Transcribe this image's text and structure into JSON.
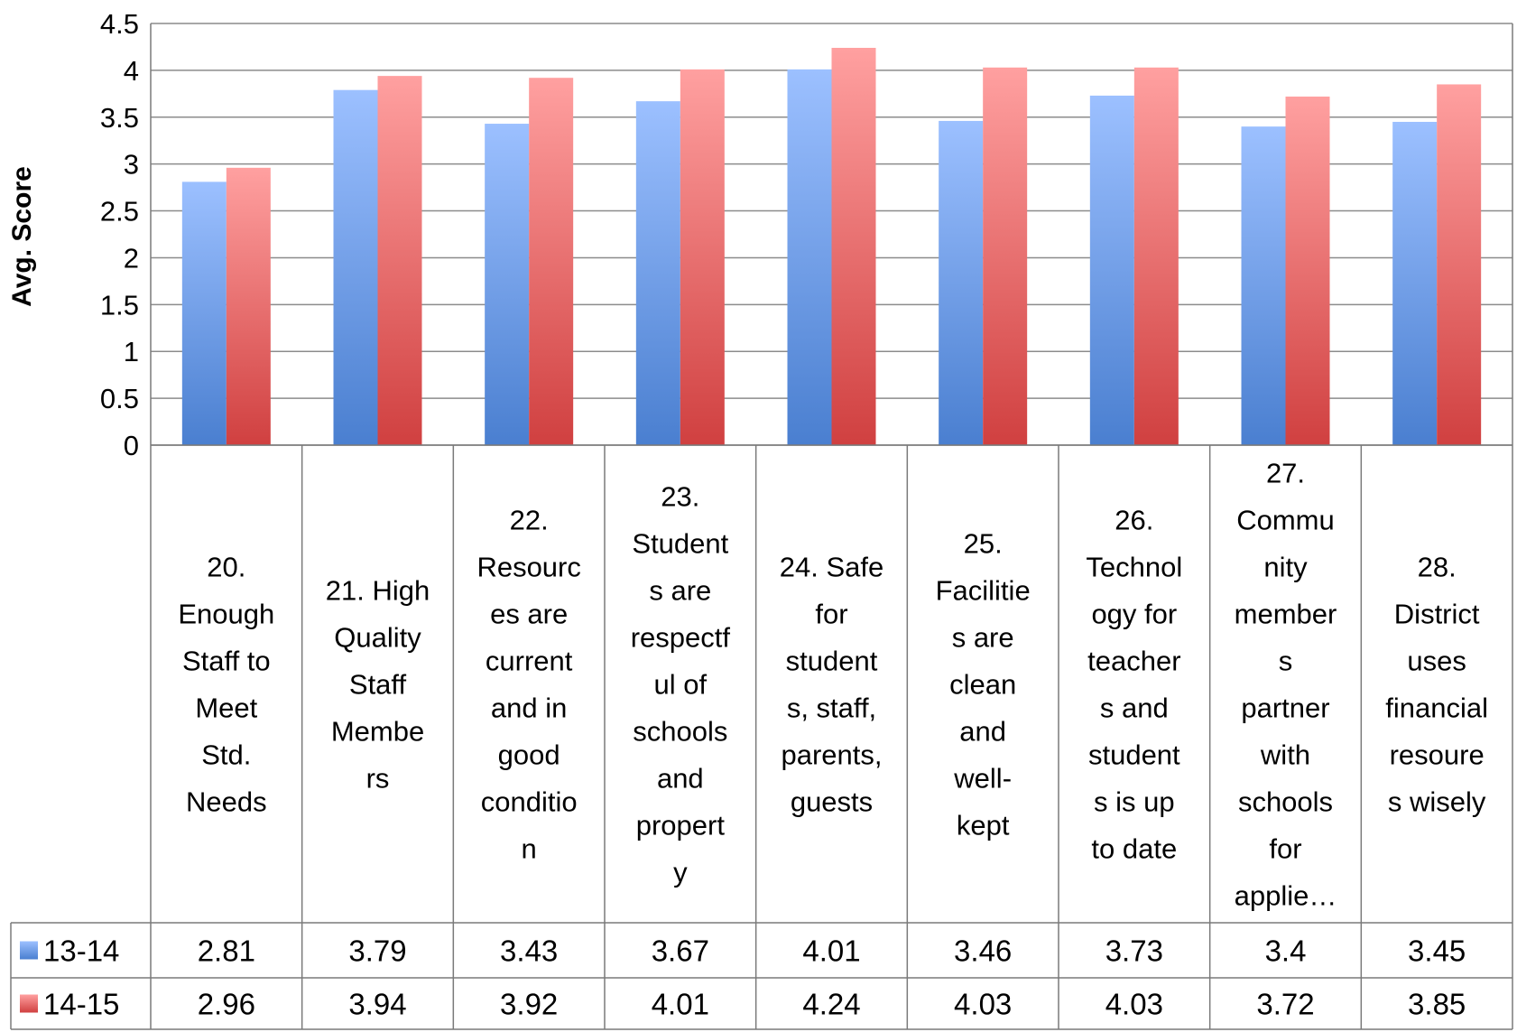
{
  "chart_data": {
    "type": "bar",
    "ylabel": "Avg. Score",
    "ylim": [
      0,
      4.5
    ],
    "yticks": [
      0,
      0.5,
      1,
      1.5,
      2,
      2.5,
      3,
      3.5,
      4,
      4.5
    ],
    "ytick_labels": [
      "0",
      "0.5",
      "1",
      "1.5",
      "2",
      "2.5",
      "3",
      "3.5",
      "4",
      "4.5"
    ],
    "grid": true,
    "legend": "data-table",
    "categories": [
      "20. Enough Staff to Meet Std. Needs",
      "21. High Quality Staff Members",
      "22. Resources are current and in good condition",
      "23. Students are respectful of schools and property",
      "24. Safe for students, staff, parents, guests",
      "25. Facilities are clean and well-kept",
      "26. Technology for teachers and students is up to date",
      "27. Community members partner with schools for applie…",
      "28. District uses financial resoures wisely"
    ],
    "category_lines": [
      [
        "20.",
        "Enough",
        "Staff to",
        "Meet",
        "Std.",
        "Needs"
      ],
      [
        "21. High",
        "Quality",
        "Staff",
        "Membe",
        "rs"
      ],
      [
        "22.",
        "Resourc",
        "es are",
        "current",
        "and in",
        "good",
        "conditio",
        "n"
      ],
      [
        "23.",
        "Student",
        "s are",
        "respectf",
        "ul of",
        "schools",
        "and",
        "propert",
        "y"
      ],
      [
        "24. Safe",
        "for",
        "student",
        "s, staff,",
        "parents,",
        "guests"
      ],
      [
        "25.",
        "Facilitie",
        "s are",
        "clean",
        "and",
        "well-",
        "kept"
      ],
      [
        "26.",
        "Technol",
        "ogy for",
        "teacher",
        "s and",
        "student",
        "s is up",
        "to date"
      ],
      [
        "27.",
        "Commu",
        "nity",
        "member",
        "s",
        "partner",
        "with",
        "schools",
        "for",
        "applie…"
      ],
      [
        "28.",
        "District",
        "uses",
        "financial",
        "resoure",
        "s wisely"
      ]
    ],
    "series": [
      {
        "name": "13-14",
        "color": "#4a7fd0",
        "color_light": "#9cc0ff",
        "values": [
          2.81,
          3.79,
          3.43,
          3.67,
          4.01,
          3.46,
          3.73,
          3.4,
          3.45
        ],
        "labels": [
          "2.81",
          "3.79",
          "3.43",
          "3.67",
          "4.01",
          "3.46",
          "3.73",
          "3.4",
          "3.45"
        ]
      },
      {
        "name": "14-15",
        "color": "#d04040",
        "color_light": "#ffa0a0",
        "values": [
          2.96,
          3.94,
          3.92,
          4.01,
          4.24,
          4.03,
          4.03,
          3.72,
          3.85
        ],
        "labels": [
          "2.96",
          "3.94",
          "3.92",
          "4.01",
          "4.24",
          "4.03",
          "4.03",
          "3.72",
          "3.85"
        ]
      }
    ]
  }
}
